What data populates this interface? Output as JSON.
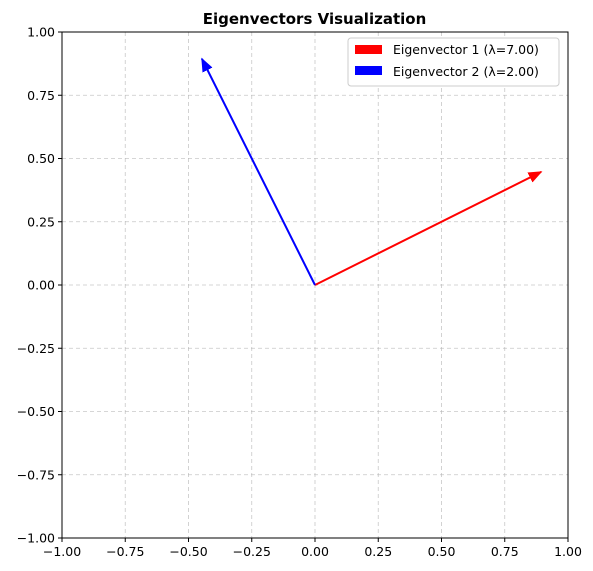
{
  "chart_data": {
    "type": "vector",
    "title": "Eigenvectors Visualization",
    "xlabel": "",
    "ylabel": "",
    "xlim": [
      -1.0,
      1.0
    ],
    "ylim": [
      -1.0,
      1.0
    ],
    "xticks": [
      "−1.00",
      "−0.75",
      "−0.50",
      "−0.25",
      "0.00",
      "0.25",
      "0.50",
      "0.75",
      "1.00"
    ],
    "yticks": [
      "−1.00",
      "−0.75",
      "−0.50",
      "−0.25",
      "0.00",
      "0.25",
      "0.50",
      "0.75",
      "1.00"
    ],
    "grid": true,
    "legend_position": "top-right",
    "series": [
      {
        "name": "Eigenvector 1 (λ=7.00)",
        "eigenvalue": 7.0,
        "origin": [
          0,
          0
        ],
        "vector": [
          0.894,
          0.447
        ],
        "color": "#ff0000"
      },
      {
        "name": "Eigenvector 2 (λ=2.00)",
        "eigenvalue": 2.0,
        "origin": [
          0,
          0
        ],
        "vector": [
          -0.447,
          0.894
        ],
        "color": "#0000ff"
      }
    ]
  }
}
